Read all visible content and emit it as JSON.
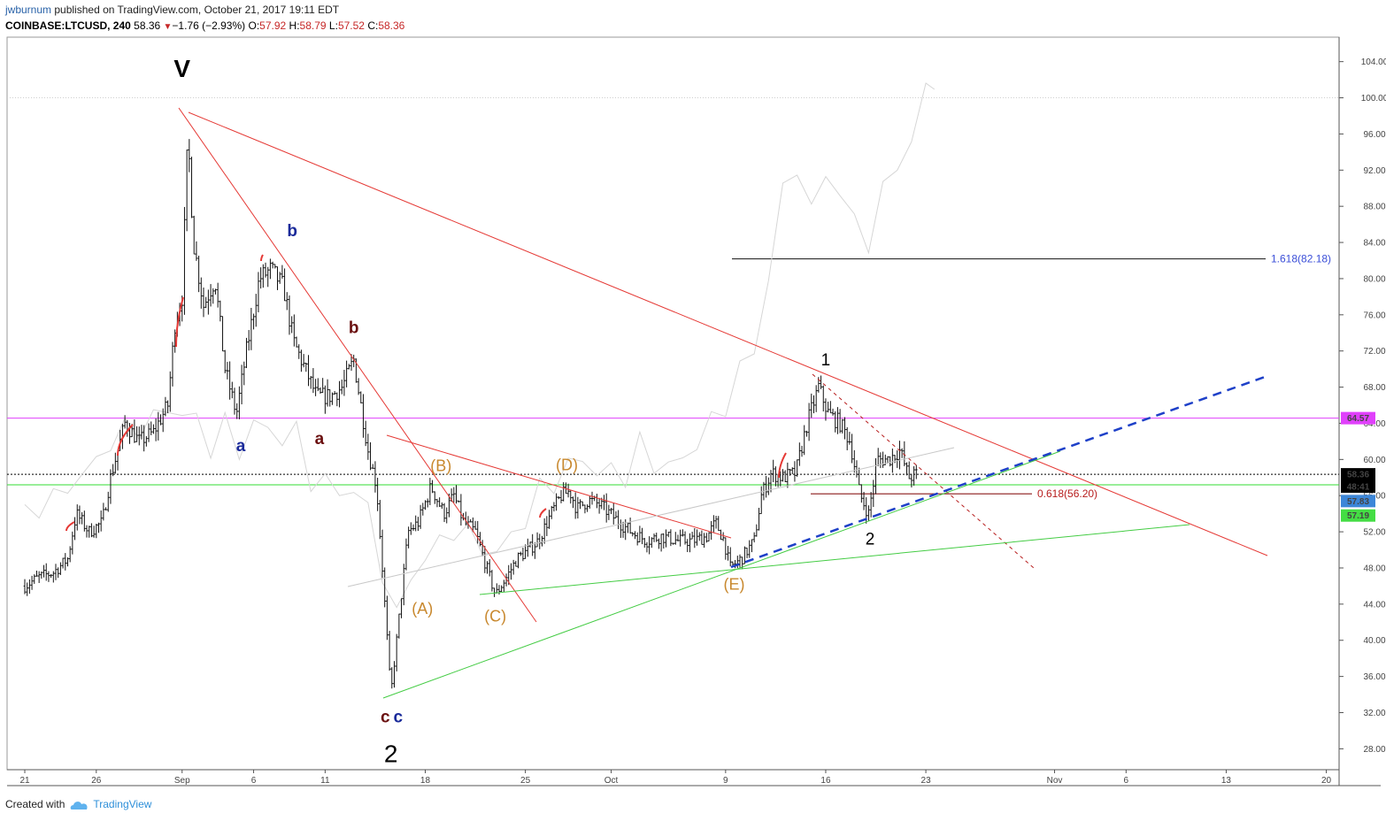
{
  "header": {
    "user": "jwburnum",
    "published_text": " published on TradingView.com, October 21, 2017 19:11 EDT",
    "symbol": "COINBASE:LTCUSD, 240",
    "last": "58.36",
    "change_arrow": "▼",
    "change": "−1.76 (−2.93%)",
    "o_label": "O:",
    "o_value": "57.92",
    "h_label": "H:",
    "h_value": "58.79",
    "l_label": "L:",
    "l_value": "57.52",
    "c_label": "C:",
    "c_value": "58.36"
  },
  "footer": {
    "created_with": "Created with",
    "brand": "TradingView"
  },
  "colors": {
    "red": "#e53935",
    "green": "#4caf50",
    "blue_dash": "#1e40c8",
    "magenta": "#e040fb",
    "dark_red": "#7b1010",
    "orange": "#c8882e",
    "navy": "#1a2a9a",
    "axis": "#333333"
  },
  "chart_data": {
    "type": "candlestick",
    "symbol": "COINBASE:LTCUSD",
    "interval": "240",
    "ylim": [
      26,
      106
    ],
    "y_ticks": [
      28,
      32,
      36,
      40,
      44,
      48,
      52,
      56,
      60,
      64,
      68,
      72,
      76,
      80,
      84,
      88,
      92,
      96,
      100,
      104
    ],
    "y_tick_labels": [
      "28.00",
      "32.00",
      "36.00",
      "40.00",
      "44.00",
      "48.00",
      "52.00",
      "56.00",
      "60.00",
      "64.00",
      "68.00",
      "72.00",
      "76.00",
      "80.00",
      "84.00",
      "88.00",
      "92.00",
      "96.00",
      "100.00",
      "104.00"
    ],
    "x_ticks": [
      {
        "day": 0,
        "label": "21"
      },
      {
        "day": 5,
        "label": "26"
      },
      {
        "day": 11,
        "label": "Sep"
      },
      {
        "day": 16,
        "label": "6"
      },
      {
        "day": 21,
        "label": "11"
      },
      {
        "day": 28,
        "label": "18"
      },
      {
        "day": 35,
        "label": "25"
      },
      {
        "day": 41,
        "label": "Oct"
      },
      {
        "day": 49,
        "label": "9"
      },
      {
        "day": 56,
        "label": "16"
      },
      {
        "day": 63,
        "label": "23"
      },
      {
        "day": 72,
        "label": "Nov"
      },
      {
        "day": 77,
        "label": "6"
      },
      {
        "day": 84,
        "label": "13"
      },
      {
        "day": 91,
        "label": "20"
      }
    ],
    "price_path": [
      [
        0.0,
        46
      ],
      [
        1.0,
        47
      ],
      [
        2.0,
        47.5
      ],
      [
        3.0,
        49
      ],
      [
        3.6,
        54
      ],
      [
        4.5,
        52
      ],
      [
        5.4,
        53
      ],
      [
        6.0,
        58
      ],
      [
        7.0,
        64
      ],
      [
        8.0,
        62
      ],
      [
        9.0,
        63
      ],
      [
        10.0,
        66
      ],
      [
        10.5,
        75
      ],
      [
        11.0,
        78
      ],
      [
        11.4,
        96
      ],
      [
        11.8,
        84
      ],
      [
        12.5,
        77
      ],
      [
        13.3,
        80
      ],
      [
        14.0,
        70
      ],
      [
        14.8,
        65
      ],
      [
        15.5,
        72
      ],
      [
        16.4,
        80
      ],
      [
        17.2,
        81
      ],
      [
        18.1,
        79
      ],
      [
        18.8,
        73
      ],
      [
        19.6,
        70
      ],
      [
        20.4,
        67
      ],
      [
        21.4,
        67
      ],
      [
        22.2,
        68
      ],
      [
        23.0,
        71
      ],
      [
        23.5,
        66
      ],
      [
        24.0,
        61
      ],
      [
        24.6,
        57
      ],
      [
        25.0,
        48
      ],
      [
        25.6,
        34
      ],
      [
        26.0,
        40
      ],
      [
        26.8,
        52
      ],
      [
        27.5,
        53
      ],
      [
        28.4,
        57
      ],
      [
        29.3,
        54
      ],
      [
        30.0,
        56
      ],
      [
        30.7,
        53
      ],
      [
        31.5,
        52
      ],
      [
        32.3,
        48
      ],
      [
        32.9,
        45
      ],
      [
        33.7,
        47
      ],
      [
        34.4,
        49
      ],
      [
        35.2,
        50
      ],
      [
        35.9,
        51
      ],
      [
        36.8,
        54
      ],
      [
        37.5,
        56
      ],
      [
        38.1,
        56.5
      ],
      [
        38.6,
        54.5
      ],
      [
        39.4,
        55.5
      ],
      [
        40.2,
        55
      ],
      [
        40.9,
        54
      ],
      [
        41.6,
        53
      ],
      [
        42.4,
        52
      ],
      [
        43.5,
        51
      ],
      [
        44.5,
        51.5
      ],
      [
        45.7,
        51
      ],
      [
        46.7,
        51
      ],
      [
        47.7,
        51.5
      ],
      [
        48.3,
        53
      ],
      [
        48.9,
        51
      ],
      [
        49.3,
        48
      ],
      [
        50.1,
        49
      ],
      [
        51.0,
        51
      ],
      [
        51.5,
        56
      ],
      [
        52.2,
        58.5
      ],
      [
        53.0,
        58
      ],
      [
        53.9,
        58.5
      ],
      [
        54.7,
        64
      ],
      [
        55.5,
        68
      ],
      [
        56.2,
        65
      ],
      [
        57.0,
        64
      ],
      [
        57.7,
        62
      ],
      [
        58.4,
        56
      ],
      [
        59.0,
        54
      ],
      [
        59.6,
        60
      ],
      [
        60.4,
        60
      ],
      [
        61.2,
        61
      ],
      [
        61.8,
        58
      ],
      [
        62.4,
        58.4
      ]
    ],
    "comparison_path": [
      [
        0.0,
        55
      ],
      [
        1.0,
        54
      ],
      [
        2.0,
        56
      ],
      [
        3.0,
        57
      ],
      [
        4.0,
        58
      ],
      [
        5.0,
        60
      ],
      [
        6.0,
        62
      ],
      [
        7.0,
        63
      ],
      [
        8.0,
        64
      ],
      [
        9.0,
        64
      ],
      [
        10.0,
        66
      ],
      [
        11.0,
        65
      ],
      [
        12.0,
        64
      ],
      [
        13.0,
        62
      ],
      [
        14.0,
        63
      ],
      [
        15.0,
        62
      ],
      [
        16.0,
        63
      ],
      [
        17.0,
        64
      ],
      [
        18.0,
        62
      ],
      [
        19.0,
        63
      ],
      [
        20.0,
        58
      ],
      [
        21.0,
        57
      ],
      [
        22.0,
        57
      ],
      [
        23.0,
        56
      ],
      [
        24.0,
        55
      ],
      [
        25.0,
        47
      ],
      [
        26.0,
        43
      ],
      [
        27.0,
        47
      ],
      [
        28.0,
        49
      ],
      [
        29.0,
        51
      ],
      [
        30.0,
        52
      ],
      [
        31.0,
        52
      ],
      [
        32.0,
        50
      ],
      [
        33.0,
        50
      ],
      [
        34.0,
        51
      ],
      [
        35.0,
        54
      ],
      [
        36.0,
        56
      ],
      [
        37.0,
        58
      ],
      [
        38.0,
        59
      ],
      [
        39.0,
        60
      ],
      [
        40.0,
        59
      ],
      [
        41.0,
        58
      ],
      [
        42.0,
        59
      ],
      [
        43.0,
        61
      ],
      [
        44.0,
        60
      ],
      [
        45.0,
        59
      ],
      [
        46.0,
        60
      ],
      [
        47.0,
        62
      ],
      [
        48.0,
        64
      ],
      [
        49.0,
        66
      ],
      [
        50.0,
        70
      ],
      [
        51.0,
        72
      ],
      [
        52.0,
        80
      ],
      [
        53.0,
        90
      ],
      [
        54.0,
        92
      ],
      [
        55.0,
        88
      ],
      [
        56.0,
        91
      ],
      [
        57.0,
        90
      ],
      [
        58.0,
        86
      ],
      [
        59.0,
        84
      ],
      [
        60.0,
        90
      ],
      [
        61.0,
        92
      ],
      [
        62.0,
        96
      ],
      [
        63.0,
        100
      ],
      [
        63.6,
        100
      ]
    ],
    "horizontal_levels": [
      {
        "name": "magenta-level",
        "price": 64.57,
        "label": "64.57",
        "color": "#e040fb"
      },
      {
        "name": "green-level",
        "price": 57.19,
        "label": "57.19",
        "color": "#33dd33"
      },
      {
        "name": "last-price-level",
        "price": 58.36,
        "label": "58.36",
        "color": "#000000"
      }
    ],
    "price_badges": [
      {
        "price": 58.36,
        "label": "58.36",
        "bg": "#000000",
        "fg": "#ffffff"
      },
      {
        "price": 57.0,
        "label": "48:41",
        "bg": "#000000",
        "fg": "#ffffff"
      },
      {
        "price": 55.4,
        "label": "57.83",
        "bg": "#3c86d8",
        "fg": "#ffffff"
      },
      {
        "price": 53.8,
        "label": "57.19",
        "bg": "#44dd44",
        "fg": "#000000"
      },
      {
        "price": 64.57,
        "label": "64.57",
        "bg": "#e040fb",
        "fg": "#ffffff"
      }
    ],
    "fib_levels": [
      {
        "label": "1.618(82.18)",
        "price": 82.18,
        "color": "#3b4fd8"
      },
      {
        "label": "0.618(56.20)",
        "price": 56.2,
        "color": "#b71c1c"
      }
    ],
    "wave_labels": [
      {
        "text": "V",
        "day": 11.0,
        "price": 102.3,
        "color": "#000000"
      },
      {
        "text": "b",
        "day": 18.7,
        "price": 84.7,
        "color": "#1a2a9a"
      },
      {
        "text": "b",
        "day": 23.0,
        "price": 74.0,
        "color": "#6a0f0f"
      },
      {
        "text": "a",
        "day": 15.1,
        "price": 60.9,
        "color": "#1a2a9a"
      },
      {
        "text": "a",
        "day": 20.6,
        "price": 61.7,
        "color": "#6a0f0f"
      },
      {
        "text": "(B)",
        "day": 29.1,
        "price": 58.7,
        "color": "#c8882e"
      },
      {
        "text": "(D)",
        "day": 37.9,
        "price": 58.8,
        "color": "#c8882e"
      },
      {
        "text": "(A)",
        "day": 27.8,
        "price": 42.9,
        "color": "#c8882e"
      },
      {
        "text": "(C)",
        "day": 32.9,
        "price": 42.1,
        "color": "#c8882e"
      },
      {
        "text": "(E)",
        "day": 49.6,
        "price": 45.6,
        "color": "#c8882e"
      },
      {
        "text": "1",
        "day": 56.0,
        "price": 70.4,
        "color": "#000000"
      },
      {
        "text": "2",
        "day": 59.1,
        "price": 50.6,
        "color": "#000000"
      },
      {
        "text": "c",
        "day": 25.2,
        "price": 30.9,
        "color": "#6a0f0f"
      },
      {
        "text": "c",
        "day": 26.1,
        "price": 30.9,
        "color": "#1a2a9a"
      },
      {
        "text": "2",
        "day": 25.6,
        "price": 26.5,
        "color": "#000000"
      }
    ]
  }
}
